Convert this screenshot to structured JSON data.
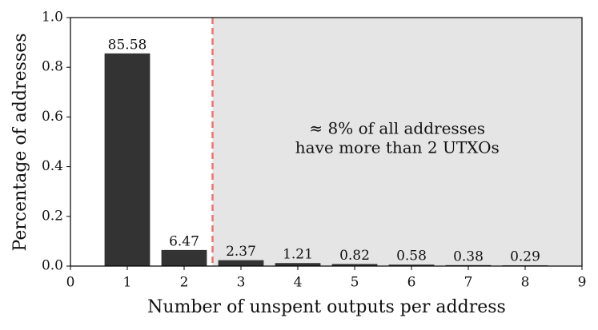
{
  "chart_data": {
    "type": "bar",
    "x": [
      1,
      2,
      3,
      4,
      5,
      6,
      7,
      8
    ],
    "values": [
      0.8558,
      0.0647,
      0.0237,
      0.0121,
      0.0082,
      0.0058,
      0.0038,
      0.0029
    ],
    "value_labels": [
      "85.58",
      "6.47",
      "2.37",
      "1.21",
      "0.82",
      "0.58",
      "0.38",
      "0.29"
    ],
    "color": "#333333",
    "xlabel": "Number of unspent outputs per address",
    "ylabel": "Percentage of addresses",
    "xlim": [
      0,
      9
    ],
    "xticks": [
      0,
      1,
      2,
      3,
      4,
      5,
      6,
      7,
      8,
      9
    ],
    "ylim": [
      0,
      1
    ],
    "yticks": [
      {
        "value": 0,
        "label": "0.0"
      },
      {
        "value": 0.2,
        "label": "0.2"
      },
      {
        "value": 0.4,
        "label": "0.4"
      },
      {
        "value": 0.6,
        "label": "0.6"
      },
      {
        "value": 0.8,
        "label": "0.8"
      },
      {
        "value": 1,
        "label": "1.0"
      }
    ],
    "vline": 2.5,
    "vline_color": "#f07070",
    "shaded_region": [
      2.5,
      9
    ],
    "shade_color": "#e5e5e5",
    "annotation": [
      "≈ 8% of all addresses",
      "have more than 2 UTXOs"
    ]
  }
}
